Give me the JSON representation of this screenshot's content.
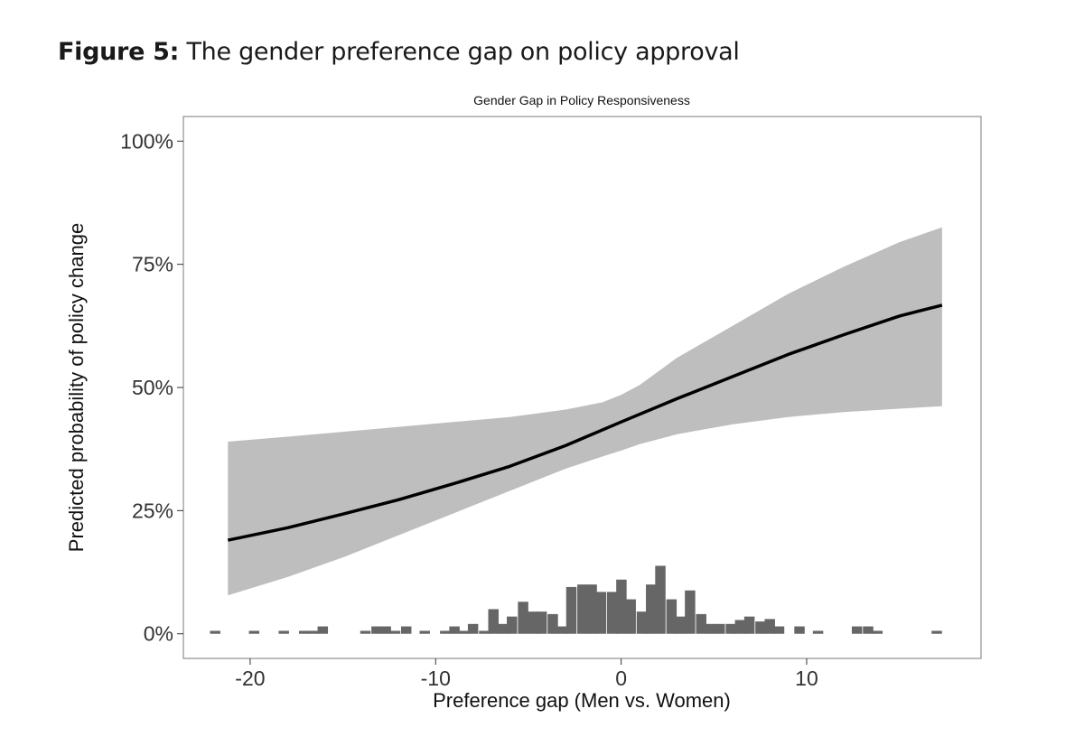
{
  "figure": {
    "label": "Figure 5:",
    "caption": "The gender preference gap on policy approval"
  },
  "chart_data": {
    "type": "line",
    "title": "Gender Gap in Policy Responsiveness",
    "xlabel": "Preference gap (Men vs. Women)",
    "ylabel": "Predicted probability of policy change",
    "xlim": [
      -23.6,
      19.4
    ],
    "ylim": [
      -0.05,
      1.05
    ],
    "x_ticks": [
      -20,
      -10,
      0,
      10
    ],
    "x_tick_labels": [
      "-20",
      "-10",
      "0",
      "10"
    ],
    "y_ticks": [
      0,
      0.25,
      0.5,
      0.75,
      1.0
    ],
    "y_tick_labels": [
      "0%",
      "25%",
      "50%",
      "75%",
      "100%"
    ],
    "grid": false,
    "legend": "none",
    "series": [
      {
        "kind": "line",
        "x": [
          -21.2,
          -18,
          -15,
          -12,
          -9,
          -6,
          -3,
          0,
          3,
          6,
          9,
          12,
          15,
          17.3
        ],
        "y": [
          0.19,
          0.215,
          0.243,
          0.272,
          0.305,
          0.34,
          0.382,
          0.43,
          0.477,
          0.522,
          0.567,
          0.607,
          0.645,
          0.667
        ]
      },
      {
        "kind": "ribbon",
        "x": [
          -21.2,
          -18,
          -15,
          -12,
          -9,
          -6,
          -3,
          -1,
          0,
          1,
          3,
          6,
          9,
          12,
          15,
          17.3
        ],
        "lower": [
          0.078,
          0.115,
          0.155,
          0.2,
          0.245,
          0.29,
          0.335,
          0.36,
          0.372,
          0.385,
          0.405,
          0.425,
          0.44,
          0.45,
          0.457,
          0.462
        ],
        "upper": [
          0.39,
          0.4,
          0.41,
          0.42,
          0.43,
          0.44,
          0.455,
          0.47,
          0.485,
          0.505,
          0.56,
          0.625,
          0.69,
          0.745,
          0.795,
          0.825
        ]
      },
      {
        "kind": "histogram",
        "bin_width": 0.53,
        "x": [
          -21.9,
          -19.8,
          -18.2,
          -17.1,
          -16.6,
          -16.1,
          -13.8,
          -13.2,
          -12.7,
          -12.2,
          -11.6,
          -10.6,
          -9.5,
          -9.0,
          -8.5,
          -8.0,
          -7.4,
          -6.9,
          -6.4,
          -5.9,
          -5.3,
          -4.8,
          -4.3,
          -3.7,
          -3.2,
          -2.7,
          -2.1,
          -1.6,
          -1.1,
          -0.5,
          0.0,
          0.5,
          1.1,
          1.6,
          2.1,
          2.7,
          3.2,
          3.7,
          4.3,
          4.8,
          5.3,
          5.9,
          6.4,
          6.9,
          7.5,
          8.0,
          8.5,
          9.6,
          10.6,
          12.7,
          13.3,
          13.8,
          17.0
        ],
        "y": [
          0.006,
          0.006,
          0.006,
          0.006,
          0.006,
          0.015,
          0.006,
          0.015,
          0.015,
          0.006,
          0.015,
          0.006,
          0.006,
          0.015,
          0.006,
          0.02,
          0.006,
          0.05,
          0.02,
          0.035,
          0.065,
          0.045,
          0.045,
          0.04,
          0.015,
          0.095,
          0.1,
          0.1,
          0.085,
          0.085,
          0.11,
          0.07,
          0.045,
          0.1,
          0.138,
          0.07,
          0.035,
          0.088,
          0.04,
          0.02,
          0.02,
          0.02,
          0.028,
          0.035,
          0.025,
          0.03,
          0.015,
          0.015,
          0.006,
          0.015,
          0.015,
          0.006,
          0.006
        ]
      }
    ]
  }
}
